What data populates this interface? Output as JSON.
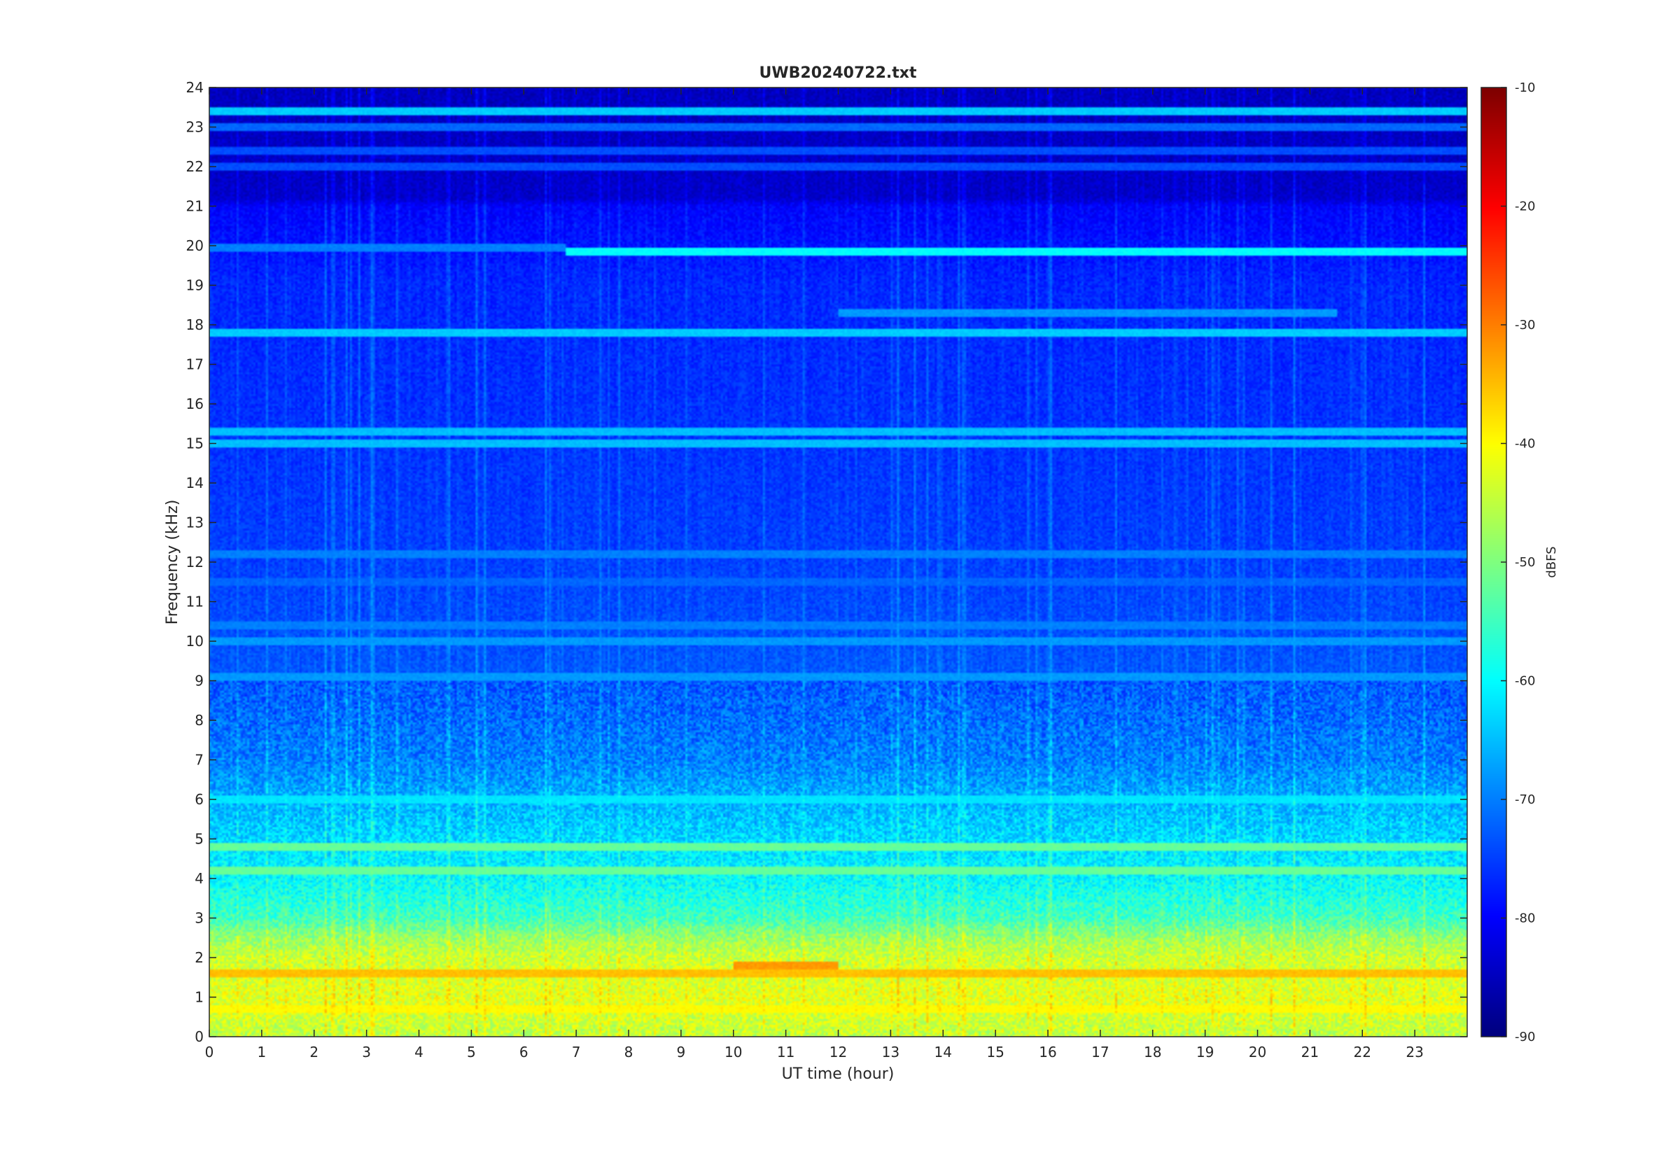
{
  "chart_data": {
    "type": "heatmap",
    "title": "UWB20240722.txt",
    "xlabel": "UT time (hour)",
    "ylabel": "Frequency (kHz)",
    "xlim": [
      0,
      24
    ],
    "ylim": [
      0,
      24
    ],
    "x_ticks": [
      "0",
      "1",
      "2",
      "3",
      "4",
      "5",
      "6",
      "7",
      "8",
      "9",
      "10",
      "11",
      "12",
      "13",
      "14",
      "15",
      "16",
      "17",
      "18",
      "19",
      "20",
      "21",
      "22",
      "23"
    ],
    "y_ticks": [
      "0",
      "1",
      "2",
      "3",
      "4",
      "5",
      "6",
      "7",
      "8",
      "9",
      "10",
      "11",
      "12",
      "13",
      "14",
      "15",
      "16",
      "17",
      "18",
      "19",
      "20",
      "21",
      "22",
      "23",
      "24"
    ],
    "colorbar": {
      "label": "dBFS",
      "range": [
        -90,
        -10
      ],
      "ticks": [
        "-10",
        "-20",
        "-30",
        "-40",
        "-50",
        "-60",
        "-70",
        "-80",
        "-90"
      ],
      "colormap": "jet"
    },
    "background_level_dbfs": [
      {
        "freq_khz": 0,
        "dbfs": -45
      },
      {
        "freq_khz": 1,
        "dbfs": -42
      },
      {
        "freq_khz": 2,
        "dbfs": -44
      },
      {
        "freq_khz": 2.5,
        "dbfs": -48
      },
      {
        "freq_khz": 3,
        "dbfs": -55
      },
      {
        "freq_khz": 4,
        "dbfs": -60
      },
      {
        "freq_khz": 5,
        "dbfs": -63
      },
      {
        "freq_khz": 6,
        "dbfs": -66
      },
      {
        "freq_khz": 7,
        "dbfs": -70
      },
      {
        "freq_khz": 9,
        "dbfs": -73
      },
      {
        "freq_khz": 12,
        "dbfs": -75
      },
      {
        "freq_khz": 15,
        "dbfs": -76
      },
      {
        "freq_khz": 19,
        "dbfs": -77
      },
      {
        "freq_khz": 21,
        "dbfs": -80
      },
      {
        "freq_khz": 21.2,
        "dbfs": -84
      },
      {
        "freq_khz": 24,
        "dbfs": -85
      }
    ],
    "narrowband_lines": [
      {
        "freq_khz": 23.4,
        "dbfs": -64,
        "t_start": 0,
        "t_end": 24
      },
      {
        "freq_khz": 23.0,
        "dbfs": -72,
        "t_start": 0,
        "t_end": 24
      },
      {
        "freq_khz": 22.4,
        "dbfs": -74,
        "t_start": 0,
        "t_end": 24
      },
      {
        "freq_khz": 22.0,
        "dbfs": -74,
        "t_start": 0,
        "t_end": 24
      },
      {
        "freq_khz": 19.85,
        "dbfs": -60,
        "t_start": 6.8,
        "t_end": 24
      },
      {
        "freq_khz": 19.95,
        "dbfs": -70,
        "t_start": 0,
        "t_end": 6.8
      },
      {
        "freq_khz": 18.3,
        "dbfs": -68,
        "t_start": 12,
        "t_end": 21.5
      },
      {
        "freq_khz": 17.8,
        "dbfs": -64,
        "t_start": 0,
        "t_end": 24
      },
      {
        "freq_khz": 15.3,
        "dbfs": -65,
        "t_start": 0,
        "t_end": 24
      },
      {
        "freq_khz": 15.0,
        "dbfs": -65,
        "t_start": 0,
        "t_end": 24
      },
      {
        "freq_khz": 12.2,
        "dbfs": -70,
        "t_start": 0,
        "t_end": 24
      },
      {
        "freq_khz": 11.5,
        "dbfs": -72,
        "t_start": 0,
        "t_end": 24
      },
      {
        "freq_khz": 10.4,
        "dbfs": -70,
        "t_start": 0,
        "t_end": 24
      },
      {
        "freq_khz": 10.0,
        "dbfs": -68,
        "t_start": 0,
        "t_end": 24
      },
      {
        "freq_khz": 9.1,
        "dbfs": -68,
        "t_start": 0,
        "t_end": 24
      },
      {
        "freq_khz": 6.0,
        "dbfs": -62,
        "t_start": 0,
        "t_end": 24
      },
      {
        "freq_khz": 4.8,
        "dbfs": -52,
        "t_start": 0,
        "t_end": 24
      },
      {
        "freq_khz": 4.2,
        "dbfs": -52,
        "t_start": 0,
        "t_end": 24
      },
      {
        "freq_khz": 1.8,
        "dbfs": -32,
        "t_start": 10,
        "t_end": 12
      },
      {
        "freq_khz": 1.6,
        "dbfs": -35,
        "t_start": 0,
        "t_end": 24
      },
      {
        "freq_khz": 0.7,
        "dbfs": -40,
        "t_start": 0,
        "t_end": 24
      }
    ]
  }
}
